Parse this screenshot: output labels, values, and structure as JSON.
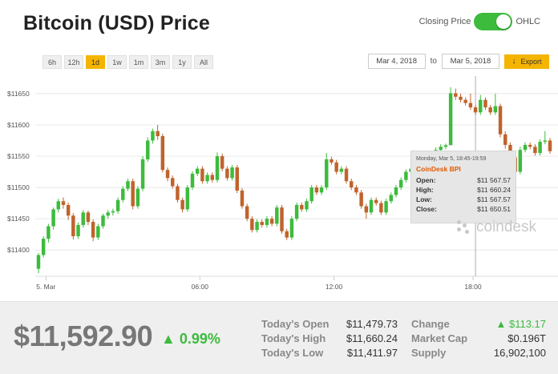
{
  "header": {
    "title": "Bitcoin (USD) Price",
    "toggle_left": "Closing Price",
    "toggle_right": "OHLC"
  },
  "ranges": [
    "6h",
    "12h",
    "1d",
    "1w",
    "1m",
    "3m",
    "1y",
    "All"
  ],
  "active_range": "1d",
  "dates": {
    "from": "Mar 4, 2018",
    "to_label": "to",
    "to": "Mar 5, 2018",
    "export": "Export"
  },
  "tooltip": {
    "date": "Monday, Mar 5, 18:45-19:59",
    "series": "CoinDesk BPI",
    "open_label": "Open:",
    "open": "$11 567.57",
    "high_label": "High:",
    "high": "$11 660.24",
    "low_label": "Low:",
    "low": "$11 567.57",
    "close_label": "Close:",
    "close": "$11 650.51"
  },
  "logo": "coindesk",
  "footer": {
    "price": "$11,592.90",
    "change_pct": "▲ 0.99%",
    "today_open_label": "Today's Open",
    "today_open": "$11,479.73",
    "today_high_label": "Today's High",
    "today_high": "$11,660.24",
    "today_low_label": "Today's Low",
    "today_low": "$11,411.97",
    "change_label": "Change",
    "change": "▲ $113.17",
    "market_cap_label": "Market Cap",
    "market_cap": "$0.196T",
    "supply_label": "Supply",
    "supply": "16,902,100"
  },
  "colors": {
    "up": "#3dbb3d",
    "down": "#c0632c",
    "accent": "#f5b400"
  },
  "chart_data": {
    "type": "candlestick",
    "y_ticks": [
      "$11400",
      "$11450",
      "$11500",
      "$11550",
      "$11600",
      "$11650"
    ],
    "y_values": [
      11400,
      11450,
      11500,
      11550,
      11600,
      11650
    ],
    "ylim": [
      11358,
      11678
    ],
    "x_ticks": [
      {
        "label": "5. Mar",
        "t": 1.5
      },
      {
        "label": "06:00",
        "t": 32.5
      },
      {
        "label": "12:00",
        "t": 59.5
      },
      {
        "label": "18:00",
        "t": 87.5
      }
    ],
    "crosshair_t": 88,
    "candles": [
      [
        11370,
        11392,
        11363,
        11395
      ],
      [
        11392,
        11418,
        11388,
        11422
      ],
      [
        11418,
        11438,
        11412,
        11442
      ],
      [
        11438,
        11465,
        11433,
        11468
      ],
      [
        11465,
        11478,
        11460,
        11482
      ],
      [
        11478,
        11472,
        11466,
        11484
      ],
      [
        11472,
        11455,
        11448,
        11476
      ],
      [
        11455,
        11422,
        11417,
        11459
      ],
      [
        11422,
        11440,
        11418,
        11444
      ],
      [
        11440,
        11460,
        11436,
        11464
      ],
      [
        11460,
        11445,
        11440,
        11463
      ],
      [
        11445,
        11420,
        11414,
        11449
      ],
      [
        11420,
        11438,
        11416,
        11442
      ],
      [
        11438,
        11455,
        11434,
        11458
      ],
      [
        11455,
        11460,
        11450,
        11464
      ],
      [
        11460,
        11462,
        11455,
        11466
      ],
      [
        11462,
        11480,
        11458,
        11484
      ],
      [
        11480,
        11498,
        11476,
        11502
      ],
      [
        11498,
        11510,
        11494,
        11514
      ],
      [
        11510,
        11470,
        11465,
        11514
      ],
      [
        11470,
        11498,
        11466,
        11502
      ],
      [
        11498,
        11545,
        11494,
        11550
      ],
      [
        11545,
        11575,
        11541,
        11580
      ],
      [
        11575,
        11590,
        11570,
        11594
      ],
      [
        11590,
        11582,
        11576,
        11600
      ],
      [
        11582,
        11528,
        11524,
        11586
      ],
      [
        11528,
        11515,
        11510,
        11532
      ],
      [
        11515,
        11502,
        11498,
        11519
      ],
      [
        11502,
        11480,
        11476,
        11506
      ],
      [
        11480,
        11465,
        11460,
        11484
      ],
      [
        11465,
        11500,
        11461,
        11504
      ],
      [
        11500,
        11522,
        11496,
        11526
      ],
      [
        11522,
        11530,
        11518,
        11534
      ],
      [
        11530,
        11510,
        11506,
        11534
      ],
      [
        11510,
        11520,
        11506,
        11524
      ],
      [
        11520,
        11512,
        11508,
        11524
      ],
      [
        11512,
        11550,
        11508,
        11556
      ],
      [
        11550,
        11530,
        11526,
        11554
      ],
      [
        11530,
        11515,
        11511,
        11534
      ],
      [
        11515,
        11532,
        11511,
        11536
      ],
      [
        11532,
        11495,
        11491,
        11536
      ],
      [
        11495,
        11470,
        11466,
        11499
      ],
      [
        11470,
        11450,
        11446,
        11474
      ],
      [
        11450,
        11432,
        11428,
        11454
      ],
      [
        11432,
        11445,
        11428,
        11449
      ],
      [
        11445,
        11440,
        11436,
        11449
      ],
      [
        11440,
        11450,
        11436,
        11454
      ],
      [
        11450,
        11442,
        11438,
        11454
      ],
      [
        11442,
        11468,
        11438,
        11472
      ],
      [
        11468,
        11430,
        11426,
        11472
      ],
      [
        11430,
        11420,
        11416,
        11434
      ],
      [
        11420,
        11450,
        11416,
        11454
      ],
      [
        11450,
        11472,
        11446,
        11476
      ],
      [
        11472,
        11465,
        11461,
        11476
      ],
      [
        11465,
        11478,
        11461,
        11482
      ],
      [
        11478,
        11500,
        11474,
        11504
      ],
      [
        11500,
        11492,
        11488,
        11504
      ],
      [
        11492,
        11500,
        11488,
        11504
      ],
      [
        11500,
        11545,
        11496,
        11555
      ],
      [
        11545,
        11540,
        11536,
        11549
      ],
      [
        11540,
        11525,
        11521,
        11544
      ],
      [
        11525,
        11530,
        11521,
        11534
      ],
      [
        11530,
        11510,
        11506,
        11534
      ],
      [
        11510,
        11500,
        11496,
        11514
      ],
      [
        11500,
        11492,
        11488,
        11504
      ],
      [
        11492,
        11470,
        11466,
        11496
      ],
      [
        11470,
        11460,
        11450,
        11474
      ],
      [
        11460,
        11480,
        11456,
        11484
      ],
      [
        11480,
        11475,
        11471,
        11484
      ],
      [
        11475,
        11460,
        11456,
        11479
      ],
      [
        11460,
        11478,
        11456,
        11482
      ],
      [
        11478,
        11488,
        11474,
        11492
      ],
      [
        11488,
        11500,
        11484,
        11504
      ],
      [
        11500,
        11512,
        11496,
        11516
      ],
      [
        11512,
        11525,
        11508,
        11529
      ],
      [
        11525,
        11530,
        11521,
        11534
      ],
      [
        11530,
        11540,
        11526,
        11544
      ],
      [
        11540,
        11545,
        11536,
        11549
      ],
      [
        11545,
        11550,
        11541,
        11554
      ],
      [
        11550,
        11555,
        11546,
        11559
      ],
      [
        11555,
        11560,
        11551,
        11564
      ],
      [
        11560,
        11565,
        11556,
        11569
      ],
      [
        11565,
        11567.57,
        11561,
        11570
      ],
      [
        11567.57,
        11650.51,
        11567.57,
        11660.24
      ],
      [
        11650.51,
        11645,
        11640,
        11658
      ],
      [
        11645,
        11640,
        11636,
        11650
      ],
      [
        11640,
        11635,
        11631,
        11644
      ],
      [
        11635,
        11628,
        11624,
        11650
      ],
      [
        11628,
        11620,
        11616,
        11632
      ],
      [
        11620,
        11640,
        11616,
        11648
      ],
      [
        11640,
        11628,
        11624,
        11644
      ],
      [
        11628,
        11620,
        11616,
        11632
      ],
      [
        11620,
        11630,
        11616,
        11650
      ],
      [
        11630,
        11585,
        11580,
        11634
      ],
      [
        11585,
        11568,
        11562,
        11590
      ],
      [
        11568,
        11548,
        11544,
        11572
      ],
      [
        11548,
        11525,
        11520,
        11552
      ],
      [
        11525,
        11560,
        11521,
        11565
      ],
      [
        11560,
        11568,
        11556,
        11572
      ],
      [
        11568,
        11565,
        11561,
        11572
      ],
      [
        11565,
        11555,
        11551,
        11569
      ],
      [
        11555,
        11573,
        11551,
        11577
      ],
      [
        11573,
        11575,
        11569,
        11590
      ],
      [
        11575,
        11558,
        11554,
        11579
      ]
    ]
  }
}
